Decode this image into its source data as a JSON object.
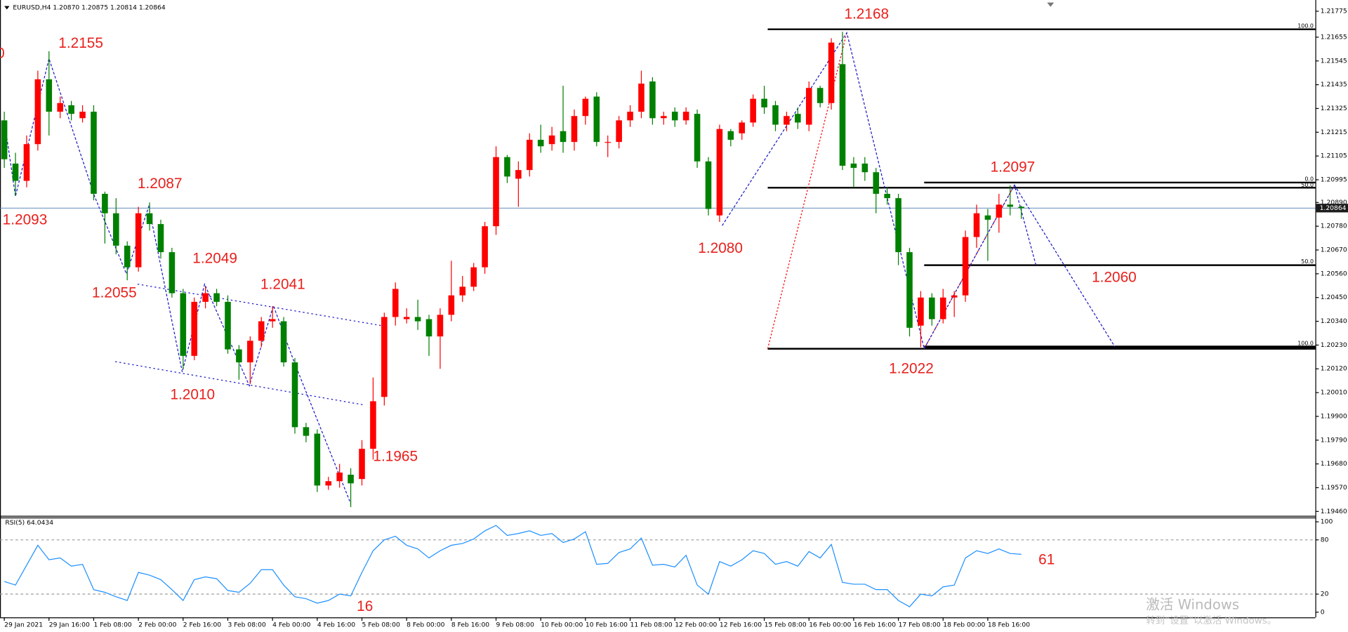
{
  "chart_data": [
    {
      "type": "candlestick",
      "title": "EURUSD,H4  1.20870 1.20875 1.20814 1.20864",
      "categories": [
        "29 Jan 2021",
        null,
        null,
        null,
        "29 Jan 16:00",
        null,
        null,
        null,
        "1 Feb 08:00",
        null,
        null,
        null,
        "2 Feb 00:00",
        null,
        null,
        null,
        "2 Feb 16:00",
        null,
        null,
        null,
        "3 Feb 08:00",
        null,
        null,
        null,
        "4 Feb 00:00",
        null,
        null,
        null,
        "4 Feb 16:00",
        null,
        null,
        null,
        "5 Feb 08:00",
        null,
        null,
        null,
        "8 Feb 00:00",
        null,
        null,
        null,
        "8 Feb 16:00",
        null,
        null,
        null,
        "9 Feb 08:00",
        null,
        null,
        null,
        "10 Feb 00:00",
        null,
        null,
        null,
        "10 Feb 16:00",
        null,
        null,
        null,
        "11 Feb 08:00",
        null,
        null,
        null,
        "12 Feb 00:00",
        null,
        null,
        null,
        "12 Feb 16:00",
        null,
        null,
        null,
        "15 Feb 08:00",
        null,
        null,
        null,
        "16 Feb 00:00",
        null,
        null,
        null,
        "16 Feb 16:00",
        null,
        null,
        null,
        "17 Feb 08:00",
        null,
        null,
        null,
        "18 Feb 00:00",
        null,
        null,
        null,
        "18 Feb 16:00",
        null,
        null,
        null
      ],
      "open": [
        1.2127,
        1.2107,
        1.2099,
        1.2116,
        1.2146,
        1.2131,
        1.2134,
        1.2128,
        1.2131,
        1.2093,
        1.2084,
        1.2069,
        1.2059,
        1.2084,
        1.2079,
        1.2066,
        1.2047,
        1.2018,
        1.2043,
        1.2047,
        1.2043,
        1.2021,
        1.2015,
        1.2025,
        1.2034,
        1.2034,
        1.2015,
        1.1985,
        1.1982,
        1.1958,
        1.196,
        1.1963,
        1.1961,
        1.1975,
        1.1999,
        1.2036,
        1.2035,
        1.2036,
        1.2035,
        1.2027,
        1.2037,
        1.2046,
        1.205,
        1.2059,
        1.2078,
        1.211,
        1.21,
        1.2104,
        1.2118,
        1.2116,
        1.2122,
        1.2117,
        1.2129,
        1.2138,
        1.2117,
        1.2117,
        1.2127,
        1.2131,
        1.2145,
        1.2128,
        1.2131,
        1.2127,
        1.213,
        1.2108,
        1.2083,
        1.2122,
        1.2121,
        1.2126,
        1.2137,
        1.2134,
        1.2125,
        1.213,
        1.2125,
        1.2142,
        1.2135,
        1.2153,
        1.2107,
        1.2107,
        1.2103,
        1.2093,
        1.2091,
        1.2066,
        1.2032,
        1.2045,
        1.2035,
        1.2045,
        1.2046,
        1.2073,
        1.2083,
        1.2082,
        1.2088,
        1.2087
      ],
      "high": [
        1.2131,
        1.2112,
        1.212,
        1.215,
        1.2159,
        1.2138,
        1.2136,
        1.2134,
        1.2134,
        1.2094,
        1.2091,
        1.2071,
        1.2087,
        1.2089,
        1.2081,
        1.2068,
        1.2049,
        1.2045,
        1.205,
        1.2049,
        1.2046,
        1.2023,
        1.2027,
        1.2036,
        1.2041,
        1.2036,
        1.2017,
        1.1987,
        1.1984,
        1.1962,
        1.1968,
        1.1966,
        1.1979,
        1.2008,
        1.2038,
        1.2052,
        1.204,
        1.2044,
        1.2037,
        1.204,
        1.2062,
        1.2055,
        1.2061,
        1.208,
        1.2115,
        1.2111,
        1.2108,
        1.2121,
        1.2125,
        1.2124,
        1.2143,
        1.2132,
        1.2138,
        1.214,
        1.212,
        1.2129,
        1.2134,
        1.215,
        1.2147,
        1.2131,
        1.2133,
        1.2133,
        1.2132,
        1.211,
        1.2125,
        1.2123,
        1.2127,
        1.2139,
        1.2143,
        1.2136,
        1.2131,
        1.2133,
        1.2145,
        1.2143,
        1.2165,
        1.2168,
        1.211,
        1.211,
        1.2105,
        1.2096,
        1.2093,
        1.2068,
        1.2048,
        1.2047,
        1.2049,
        1.2048,
        1.2076,
        1.2088,
        1.2086,
        1.2093,
        1.2097,
        1.20875
      ],
      "low": [
        1.2105,
        1.2092,
        1.2096,
        1.2113,
        1.212,
        1.2128,
        1.2127,
        1.2126,
        1.209,
        1.207,
        1.2065,
        1.2053,
        1.2057,
        1.2076,
        1.2063,
        1.2045,
        1.2012,
        1.2016,
        1.204,
        1.2041,
        1.2019,
        1.2007,
        1.2005,
        1.2022,
        1.2031,
        1.2013,
        1.1982,
        1.1978,
        1.1955,
        1.1956,
        1.1957,
        1.1948,
        1.1958,
        1.197,
        1.1995,
        1.2032,
        1.2033,
        1.203,
        1.2018,
        1.2012,
        1.2034,
        1.2043,
        1.2048,
        1.2056,
        1.2074,
        1.2098,
        1.2087,
        1.2101,
        1.2112,
        1.2113,
        1.2112,
        1.2113,
        1.2125,
        1.2115,
        1.211,
        1.2114,
        1.2124,
        1.2128,
        1.2125,
        1.2125,
        1.2124,
        1.2125,
        1.2105,
        1.2083,
        1.208,
        1.2115,
        1.2118,
        1.2124,
        1.213,
        1.2122,
        1.2122,
        1.2123,
        1.2122,
        1.2133,
        1.2132,
        1.2104,
        1.2096,
        1.2099,
        1.2084,
        1.2088,
        1.206,
        1.2027,
        1.2022,
        1.2032,
        1.2033,
        1.2036,
        1.2043,
        1.2068,
        1.2062,
        1.2075,
        1.2083,
        1.20814
      ],
      "close": [
        1.2109,
        1.2099,
        1.2116,
        1.2146,
        1.2131,
        1.2135,
        1.213,
        1.2131,
        1.2093,
        1.2084,
        1.2069,
        1.2059,
        1.2084,
        1.2079,
        1.2066,
        1.2047,
        1.2018,
        1.2043,
        1.2047,
        1.2043,
        1.2021,
        1.2015,
        1.2025,
        1.2034,
        1.2035,
        1.2015,
        1.1985,
        1.1981,
        1.1958,
        1.196,
        1.1964,
        1.1959,
        1.1975,
        1.1997,
        1.2036,
        1.2049,
        1.2036,
        1.2034,
        1.2027,
        1.2037,
        1.2046,
        1.205,
        1.2059,
        1.2078,
        1.211,
        1.2101,
        1.2104,
        1.2118,
        1.2115,
        1.212,
        1.2117,
        1.2129,
        1.2137,
        1.2117,
        1.2117,
        1.2127,
        1.2131,
        1.2144,
        1.2128,
        1.2129,
        1.2127,
        1.2131,
        1.2108,
        1.2086,
        1.2123,
        1.2118,
        1.2126,
        1.2137,
        1.2133,
        1.2125,
        1.2129,
        1.2126,
        1.2142,
        1.2135,
        1.2163,
        1.2106,
        1.2105,
        1.2103,
        1.2093,
        1.2091,
        1.2066,
        1.2031,
        1.2045,
        1.2035,
        1.2045,
        1.2046,
        1.2073,
        1.2084,
        1.2081,
        1.2088,
        1.2087,
        1.20864
      ],
      "up_color": "#ff0000",
      "down_color": "#008000",
      "current_price": 1.20864,
      "ylim": [
        1.19444,
        1.21827
      ],
      "yticks": [
        1.21775,
        1.21655,
        1.21545,
        1.21435,
        1.21325,
        1.21215,
        1.21105,
        1.20995,
        {
          "value": 1.2089,
          "label": "1.20890"
        },
        {
          "value": 1.2078,
          "label": "1.20780"
        },
        {
          "value": 1.2067,
          "label": "1.20670"
        },
        {
          "value": 1.2056,
          "label": "1.20560"
        },
        {
          "value": 1.2045,
          "label": "1.20450"
        },
        {
          "value": 1.2034,
          "label": "1.20340"
        },
        {
          "value": 1.2023,
          "label": "1.20230"
        },
        {
          "value": 1.2012,
          "label": "1.20120"
        },
        {
          "value": 1.2001,
          "label": "1.20010"
        },
        {
          "value": 1.199,
          "label": "1.19900"
        },
        {
          "value": 1.1979,
          "label": "1.19790"
        },
        {
          "value": 1.1968,
          "label": "1.19680"
        },
        {
          "value": 1.1957,
          "label": "1.19570"
        },
        {
          "value": 1.1946,
          "label": "1.19460"
        }
      ],
      "annotations": [
        "0",
        "1.2155",
        "1.2093",
        "1.2087",
        "1.2055",
        "1.2049",
        "1.2041",
        "1.2010",
        "1.1965",
        "1.2080",
        "1.2168",
        "1.2097",
        "1.2060",
        "1.2022"
      ],
      "fib_labels": [
        "100.0",
        "0.0",
        "50.0",
        "50.0",
        "100.0"
      ]
    },
    {
      "type": "line",
      "title": "RSI(5) 64.0434",
      "values": [
        34,
        30,
        52,
        74,
        58,
        60,
        51,
        53,
        25,
        22,
        17,
        13,
        44,
        41,
        36,
        25,
        13,
        36,
        39,
        37,
        24,
        22,
        32,
        47,
        47,
        30,
        17,
        15,
        10,
        13,
        20,
        18,
        44,
        68,
        80,
        84,
        74,
        70,
        60,
        68,
        74,
        76,
        81,
        90,
        96,
        85,
        87,
        90,
        85,
        87,
        77,
        81,
        89,
        53,
        54,
        66,
        70,
        82,
        52,
        53,
        50,
        63,
        30,
        20,
        56,
        51,
        58,
        68,
        65,
        53,
        56,
        51,
        67,
        60,
        75,
        33,
        31,
        31,
        25,
        25,
        13,
        6,
        20,
        18,
        28,
        30,
        60,
        68,
        65,
        70,
        65,
        64
      ],
      "color": "#1e90ff",
      "ylim": [
        0,
        100
      ],
      "yticks": [
        0,
        20,
        80,
        100
      ],
      "annotations": [
        "16",
        "61"
      ]
    }
  ],
  "watermark": [
    "激活 Windows",
    "转到“设置”以激活 Windows。"
  ]
}
